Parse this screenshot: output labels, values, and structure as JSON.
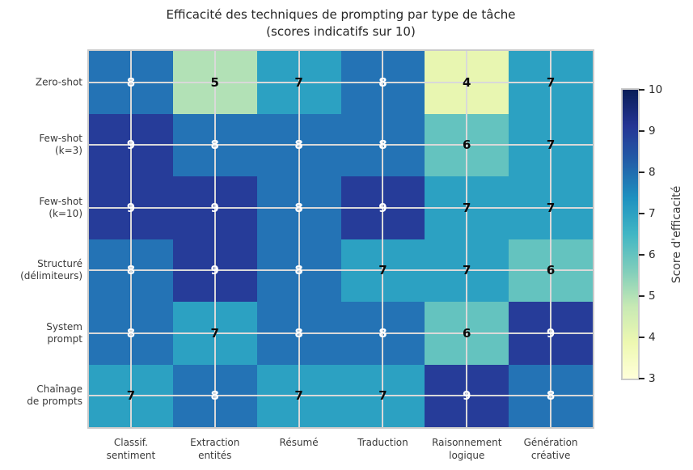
{
  "chart_data": {
    "type": "heatmap",
    "title": "Efficacité des techniques de prompting par type de tâche",
    "subtitle": "(scores indicatifs sur 10)",
    "rows": [
      "Zero-shot",
      "Few-shot\n(k=3)",
      "Few-shot\n(k=10)",
      "Structuré\n(délimiteurs)",
      "System\nprompt",
      "Chaînage\nde prompts"
    ],
    "columns": [
      "Classif.\nsentiment",
      "Extraction\nentités",
      "Résumé",
      "Traduction",
      "Raisonnement\nlogique",
      "Génération\ncréative"
    ],
    "values": [
      [
        8,
        5,
        7,
        8,
        4,
        7
      ],
      [
        9,
        8,
        8,
        8,
        6,
        7
      ],
      [
        9,
        9,
        8,
        9,
        7,
        7
      ],
      [
        8,
        9,
        8,
        7,
        7,
        6
      ],
      [
        8,
        7,
        8,
        8,
        6,
        9
      ],
      [
        7,
        8,
        7,
        7,
        9,
        8
      ]
    ],
    "colormap": "YlGnBu",
    "grid": true,
    "value_colors": {
      "3": "#ffffd9",
      "4": "#e8f6b1",
      "5": "#b2e1b6",
      "6": "#64c3bf",
      "7": "#2ca1c2",
      "8": "#2473b5",
      "9": "#263c99",
      "10": "#081d58"
    },
    "annotation_white_threshold": 8,
    "colorbar": {
      "label": "Score d'efficacité",
      "vmin": 3,
      "vmax": 10,
      "ticks": [
        10,
        9,
        8,
        7,
        6,
        5,
        4,
        3
      ],
      "position": "right",
      "gradient_stops": [
        "#ffffd9",
        "#edf8b1",
        "#c7e9b4",
        "#7fcdbb",
        "#41b6c4",
        "#1d91c0",
        "#225ea8",
        "#253494",
        "#081d58"
      ]
    }
  },
  "colors": {
    "background": "#ffffff",
    "grid_line": "#d9d9d9",
    "frame": "#cacaca",
    "title_text": "#262626",
    "label_text": "#3a3a3a",
    "annotation_dark": "#0a0a0a",
    "annotation_light": "#ffffff"
  }
}
